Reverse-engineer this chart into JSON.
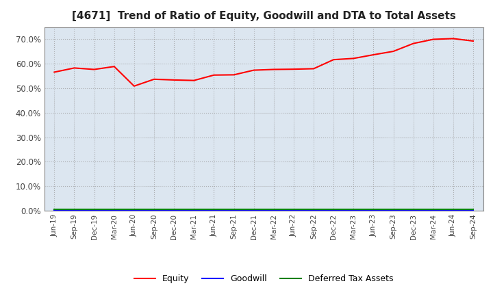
{
  "title": "[4671]  Trend of Ratio of Equity, Goodwill and DTA to Total Assets",
  "x_labels": [
    "Jun-19",
    "Sep-19",
    "Dec-19",
    "Mar-20",
    "Jun-20",
    "Sep-20",
    "Dec-20",
    "Mar-21",
    "Jun-21",
    "Sep-21",
    "Dec-21",
    "Mar-22",
    "Jun-22",
    "Sep-22",
    "Dec-22",
    "Mar-23",
    "Jun-23",
    "Sep-23",
    "Dec-23",
    "Mar-24",
    "Jun-24",
    "Sep-24"
  ],
  "equity": [
    0.566,
    0.583,
    0.577,
    0.589,
    0.509,
    0.537,
    0.534,
    0.532,
    0.554,
    0.555,
    0.574,
    0.577,
    0.578,
    0.58,
    0.617,
    0.622,
    0.637,
    0.651,
    0.683,
    0.7,
    0.703,
    0.693
  ],
  "goodwill": [
    0.003,
    0.003,
    0.003,
    0.003,
    0.003,
    0.003,
    0.003,
    0.003,
    0.003,
    0.003,
    0.003,
    0.003,
    0.003,
    0.003,
    0.003,
    0.003,
    0.003,
    0.003,
    0.003,
    0.003,
    0.003,
    0.003
  ],
  "dta": [
    0.005,
    0.005,
    0.005,
    0.005,
    0.005,
    0.005,
    0.005,
    0.005,
    0.005,
    0.005,
    0.005,
    0.005,
    0.005,
    0.005,
    0.005,
    0.005,
    0.005,
    0.005,
    0.005,
    0.005,
    0.005,
    0.005
  ],
  "equity_color": "#ff0000",
  "goodwill_color": "#0000ff",
  "dta_color": "#008000",
  "ylim": [
    0.0,
    0.75
  ],
  "yticks": [
    0.0,
    0.1,
    0.2,
    0.3,
    0.4,
    0.5,
    0.6,
    0.7
  ],
  "bg_color": "#ffffff",
  "plot_bg_color": "#dce6f0",
  "grid_color": "#999999",
  "title_fontsize": 11,
  "legend_labels": [
    "Equity",
    "Goodwill",
    "Deferred Tax Assets"
  ]
}
